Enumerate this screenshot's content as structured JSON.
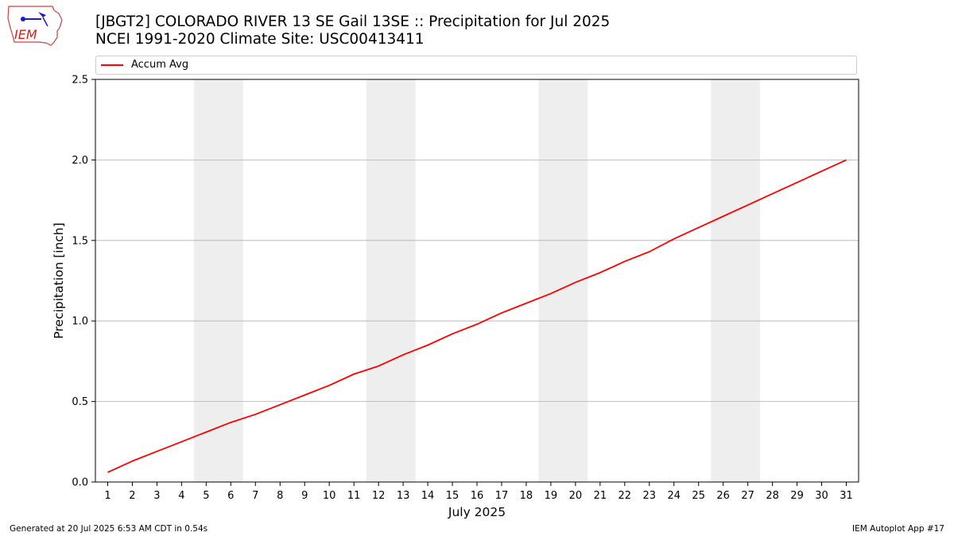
{
  "header": {
    "logo_text": "IEM",
    "title_line1": "[JBGT2] COLORADO RIVER 13 SE Gail 13SE :: Precipitation for Jul 2025",
    "title_line2": "NCEI 1991-2020 Climate Site: USC00413411"
  },
  "footer": {
    "generated": "Generated at 20 Jul 2025 6:53 AM CDT in 0.54s",
    "app": "IEM Autoplot App #17"
  },
  "chart_data": {
    "type": "line",
    "title": "[JBGT2] COLORADO RIVER 13 SE Gail 13SE :: Precipitation for Jul 2025",
    "subtitle": "NCEI 1991-2020 Climate Site: USC00413411",
    "xlabel": "July 2025",
    "ylabel": "Precipitation [inch]",
    "xlim": [
      0.5,
      31.5
    ],
    "ylim": [
      0,
      2.5
    ],
    "x_ticks": [
      1,
      2,
      3,
      4,
      5,
      6,
      7,
      8,
      9,
      10,
      11,
      12,
      13,
      14,
      15,
      16,
      17,
      18,
      19,
      20,
      21,
      22,
      23,
      24,
      25,
      26,
      27,
      28,
      29,
      30,
      31
    ],
    "y_ticks": [
      "0.0",
      "0.5",
      "1.0",
      "1.5",
      "2.0",
      "2.5"
    ],
    "y_tick_values": [
      0,
      0.5,
      1.0,
      1.5,
      2.0,
      2.5
    ],
    "grid": "horizontal",
    "legend_position": "top",
    "weekend_bands": [
      [
        5,
        6
      ],
      [
        12,
        13
      ],
      [
        19,
        20
      ],
      [
        26,
        27
      ]
    ],
    "series": [
      {
        "name": "Accum Avg",
        "color": "#ff0000",
        "x": [
          1,
          2,
          3,
          4,
          5,
          6,
          7,
          8,
          9,
          10,
          11,
          12,
          13,
          14,
          15,
          16,
          17,
          18,
          19,
          20,
          21,
          22,
          23,
          24,
          25,
          26,
          27,
          28,
          29,
          30,
          31
        ],
        "values": [
          0.06,
          0.13,
          0.19,
          0.25,
          0.31,
          0.37,
          0.42,
          0.48,
          0.54,
          0.6,
          0.67,
          0.72,
          0.79,
          0.85,
          0.92,
          0.98,
          1.05,
          1.11,
          1.17,
          1.24,
          1.3,
          1.37,
          1.43,
          1.51,
          1.58,
          1.65,
          1.72,
          1.79,
          1.86,
          1.93,
          2.0
        ]
      }
    ]
  },
  "colors": {
    "series": "#ff0000",
    "weekend_band": "#eeeeee",
    "grid": "#b0b0b0"
  }
}
